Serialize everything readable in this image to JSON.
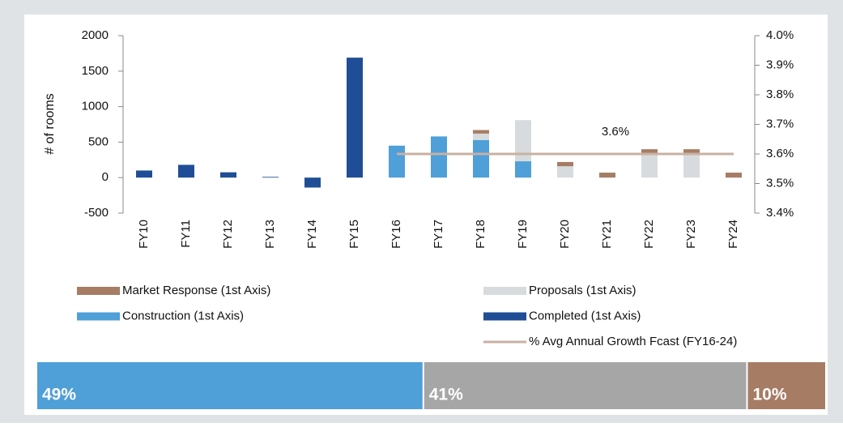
{
  "chart_data": [
    {
      "type": "stacked-bar-line",
      "ylabel": "# of rooms",
      "categories": [
        "FY10",
        "FY11",
        "FY12",
        "FY13",
        "FY14",
        "FY15",
        "FY16",
        "FY17",
        "FY18",
        "FY19",
        "FY20",
        "FY21",
        "FY22",
        "FY23",
        "FY24"
      ],
      "series": [
        {
          "name": "Completed (1st Axis)",
          "color": "#1f4e96",
          "values": [
            100,
            180,
            75,
            10,
            -140,
            1690,
            0,
            0,
            0,
            0,
            0,
            0,
            0,
            0,
            0
          ]
        },
        {
          "name": "Construction (1st Axis)",
          "color": "#4f9fd8",
          "values": [
            0,
            0,
            0,
            0,
            0,
            0,
            450,
            580,
            530,
            230,
            0,
            0,
            0,
            0,
            0
          ]
        },
        {
          "name": "Proposals (1st Axis)",
          "color": "#d7dbdd",
          "values": [
            0,
            0,
            0,
            0,
            0,
            0,
            0,
            0,
            90,
            580,
            160,
            0,
            350,
            350,
            0
          ]
        },
        {
          "name": "Market Response (1st Axis)",
          "color": "#a67c65",
          "values": [
            0,
            0,
            0,
            0,
            0,
            0,
            0,
            0,
            50,
            0,
            60,
            70,
            50,
            50,
            70
          ]
        },
        {
          "name": "% Avg Annual Growth Fcast (FY16-24)",
          "color": "#c9b0a3",
          "type": "line",
          "axis": "y2",
          "values": [
            null,
            null,
            null,
            null,
            null,
            null,
            3.6,
            3.6,
            3.6,
            3.6,
            3.6,
            3.6,
            3.6,
            3.6,
            3.6
          ]
        }
      ],
      "annotation": "3.6%",
      "ylim": [
        -500,
        2000
      ],
      "yticks": [
        -500,
        0,
        500,
        1000,
        1500,
        2000
      ],
      "y2lim": [
        3.4,
        4.0
      ],
      "y2ticks": [
        {
          "value": 3.4,
          "label": "3.4%"
        },
        {
          "value": 3.5,
          "label": "3.5%"
        },
        {
          "value": 3.6,
          "label": "3.6%"
        },
        {
          "value": 3.7,
          "label": "3.7%"
        },
        {
          "value": 3.8,
          "label": "3.8%"
        },
        {
          "value": 3.9,
          "label": "3.9%"
        },
        {
          "value": 4.0,
          "label": "4.0%"
        }
      ]
    },
    {
      "type": "stacked-bar-100",
      "values": [
        49,
        41,
        10
      ],
      "value_labels": [
        "49%",
        "41%",
        "10%"
      ],
      "colors": [
        "#4f9fd8",
        "#a6a6a6",
        "#a67c65"
      ]
    }
  ]
}
